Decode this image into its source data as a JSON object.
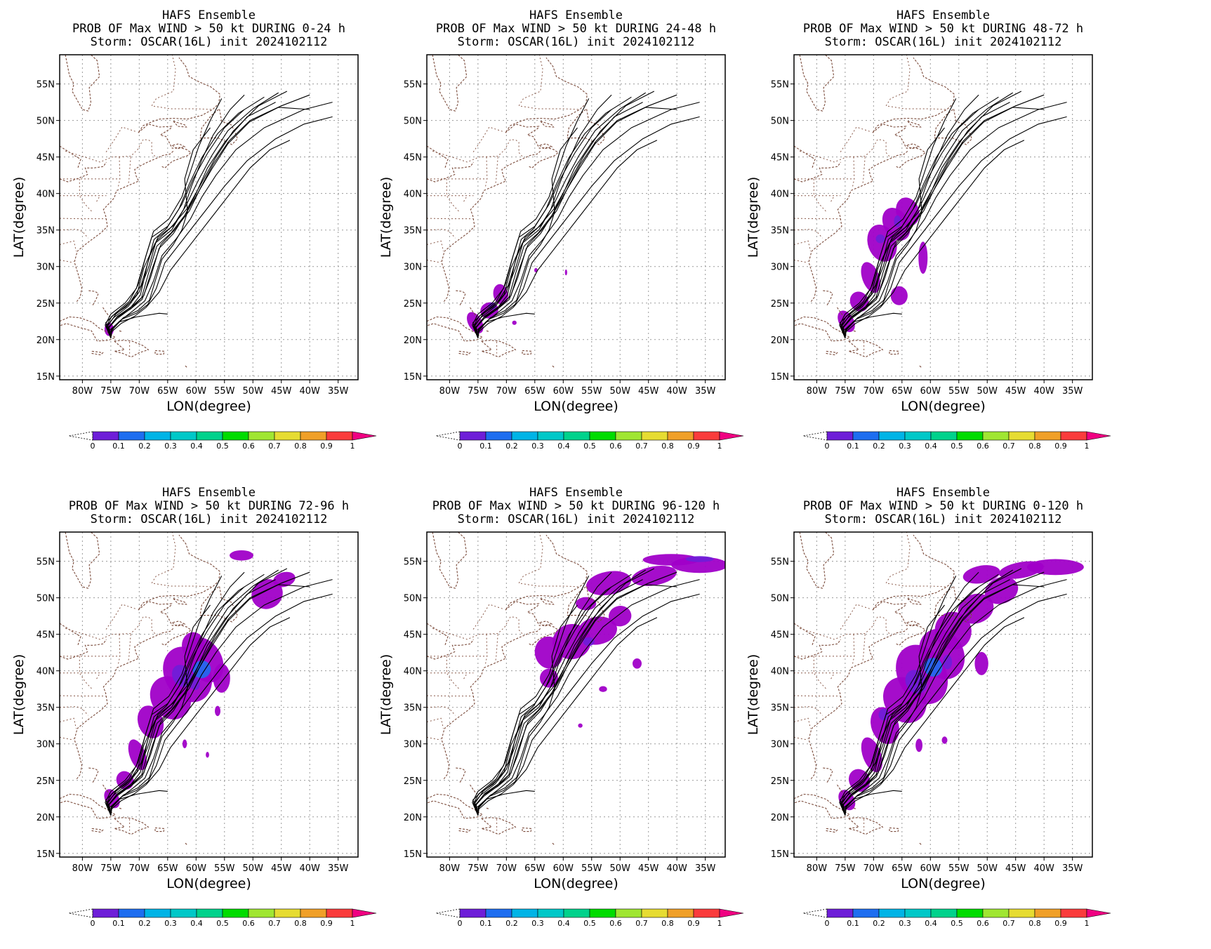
{
  "figure": {
    "common": {
      "title1": "HAFS Ensemble",
      "title3": "Storm: OSCAR(16L) init 2024102112",
      "xlabel": "LON(degree)",
      "ylabel": "LAT(degree)",
      "lon_ticks": [
        "80W",
        "75W",
        "70W",
        "65W",
        "60W",
        "55W",
        "50W",
        "45W",
        "40W",
        "35W"
      ],
      "lat_ticks": [
        "15N",
        "20N",
        "25N",
        "30N",
        "35N",
        "40N",
        "45N",
        "50N",
        "55N"
      ],
      "colorbar_labels": [
        "0",
        "0.1",
        "0.2",
        "0.3",
        "0.4",
        "0.5",
        "0.6",
        "0.7",
        "0.8",
        "0.9",
        "1"
      ],
      "colorbar_colors": [
        "#a000c8",
        "#6e1ed8",
        "#1e6ef0",
        "#00b4e6",
        "#00c8c8",
        "#00d28c",
        "#00dc00",
        "#a0e632",
        "#e6dc32",
        "#f0a028",
        "#fa3c3c",
        "#f00082"
      ]
    },
    "panels": [
      {
        "title2": "PROB OF Max WIND > 50 kt DURING  0-24 h"
      },
      {
        "title2": "PROB OF Max WIND > 50 kt DURING 24-48 h"
      },
      {
        "title2": "PROB OF Max WIND > 50 kt DURING 48-72 h"
      },
      {
        "title2": "PROB OF Max WIND > 50 kt DURING 72-96 h"
      },
      {
        "title2": "PROB OF Max WIND > 50 kt DURING 96-120 h"
      },
      {
        "title2": "PROB OF Max WIND > 50 kt DURING 0-120 h"
      }
    ]
  }
}
